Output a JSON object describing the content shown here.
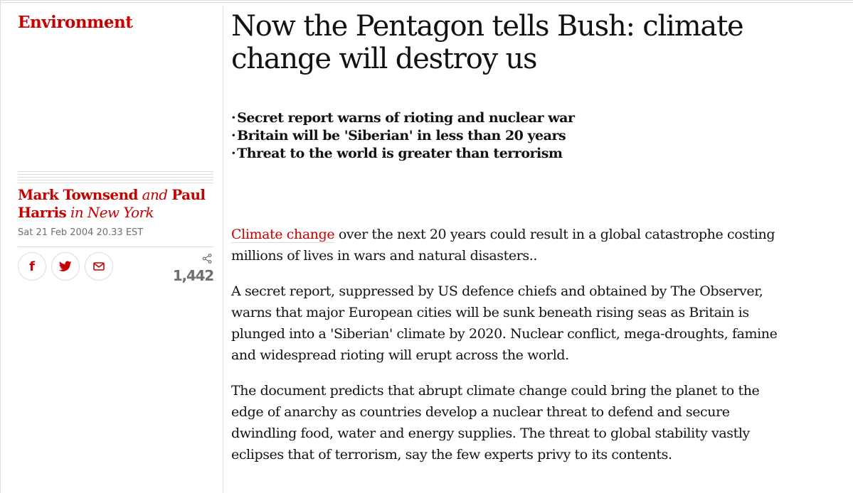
{
  "section": "Environment",
  "headline": "Now the Pentagon tells Bush: climate change will destroy us",
  "standfirst": [
    "Secret report warns of rioting and nuclear war",
    "Britain will be 'Siberian' in less than 20 years",
    "Threat to the world is greater than terrorism"
  ],
  "byline": {
    "author1": "Mark Townsend",
    "joiner": "and",
    "author2": "Paul Harris",
    "location": "in New York"
  },
  "dateline": "Sat 21 Feb 2004 20.33 EST",
  "share": {
    "facebook_label": "f",
    "twitter_icon": "twitter-icon",
    "email_icon": "email-icon",
    "count": "1,442"
  },
  "body": {
    "p1_link": "Climate change",
    "p1_rest": " over the next 20 years could result in a global catastrophe costing millions of lives in wars and natural disasters..",
    "p2": "A secret report, suppressed by US defence chiefs and obtained by The Observer, warns that major European cities will be sunk beneath rising seas as Britain is plunged into a 'Siberian' climate by 2020. Nuclear conflict, mega-droughts, famine and widespread rioting will erupt across the world.",
    "p3": "The document predicts that abrupt climate change could bring the planet to the edge of anarchy as countries develop a nuclear threat to defend and secure dwindling food, water and energy supplies. The threat to global stability vastly eclipses that of terrorism, say the few experts privy to its contents."
  },
  "colors": {
    "accent": "#c70000",
    "text": "#121212",
    "muted": "#707070",
    "rule": "#dcdcdc"
  }
}
